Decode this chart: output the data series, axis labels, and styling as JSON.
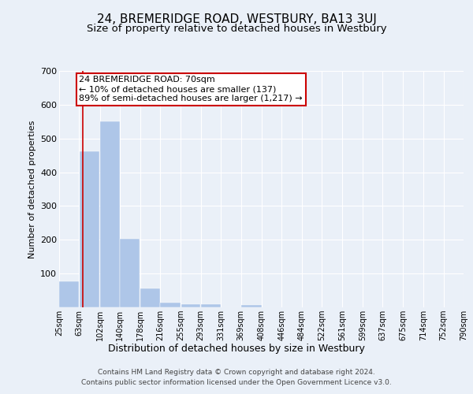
{
  "title": "24, BREMERIDGE ROAD, WESTBURY, BA13 3UJ",
  "subtitle": "Size of property relative to detached houses in Westbury",
  "xlabel": "Distribution of detached houses by size in Westbury",
  "ylabel": "Number of detached properties",
  "footer_line1": "Contains HM Land Registry data © Crown copyright and database right 2024.",
  "footer_line2": "Contains public sector information licensed under the Open Government Licence v3.0.",
  "property_label": "24 BREMERIDGE ROAD: 70sqm",
  "annotation_line2": "← 10% of detached houses are smaller (137)",
  "annotation_line3": "89% of semi-detached houses are larger (1,217) →",
  "bar_left_edges": [
    25,
    63,
    102,
    140,
    178,
    216,
    255,
    293,
    331,
    369,
    408,
    446,
    484,
    522,
    561,
    599,
    637,
    675,
    714,
    752
  ],
  "bar_widths": [
    38,
    39,
    38,
    38,
    38,
    39,
    38,
    38,
    38,
    39,
    38,
    38,
    38,
    39,
    38,
    38,
    38,
    39,
    38,
    38
  ],
  "bar_heights": [
    78,
    462,
    550,
    203,
    57,
    15,
    10,
    9,
    0,
    8,
    0,
    0,
    0,
    0,
    0,
    0,
    0,
    0,
    0,
    0
  ],
  "tick_labels": [
    "25sqm",
    "63sqm",
    "102sqm",
    "140sqm",
    "178sqm",
    "216sqm",
    "255sqm",
    "293sqm",
    "331sqm",
    "369sqm",
    "408sqm",
    "446sqm",
    "484sqm",
    "522sqm",
    "561sqm",
    "599sqm",
    "637sqm",
    "675sqm",
    "714sqm",
    "752sqm",
    "790sqm"
  ],
  "bar_color": "#aec6e8",
  "vline_color": "#cc0000",
  "vline_x": 70,
  "annotation_box_color": "#cc0000",
  "bg_color": "#eaf0f8",
  "ylim": [
    0,
    700
  ],
  "yticks": [
    0,
    100,
    200,
    300,
    400,
    500,
    600,
    700
  ],
  "grid_color": "#ffffff",
  "title_fontsize": 11,
  "subtitle_fontsize": 9.5,
  "ylabel_fontsize": 8,
  "xlabel_fontsize": 9,
  "tick_fontsize": 7,
  "annotation_fontsize": 8,
  "footer_fontsize": 6.5
}
